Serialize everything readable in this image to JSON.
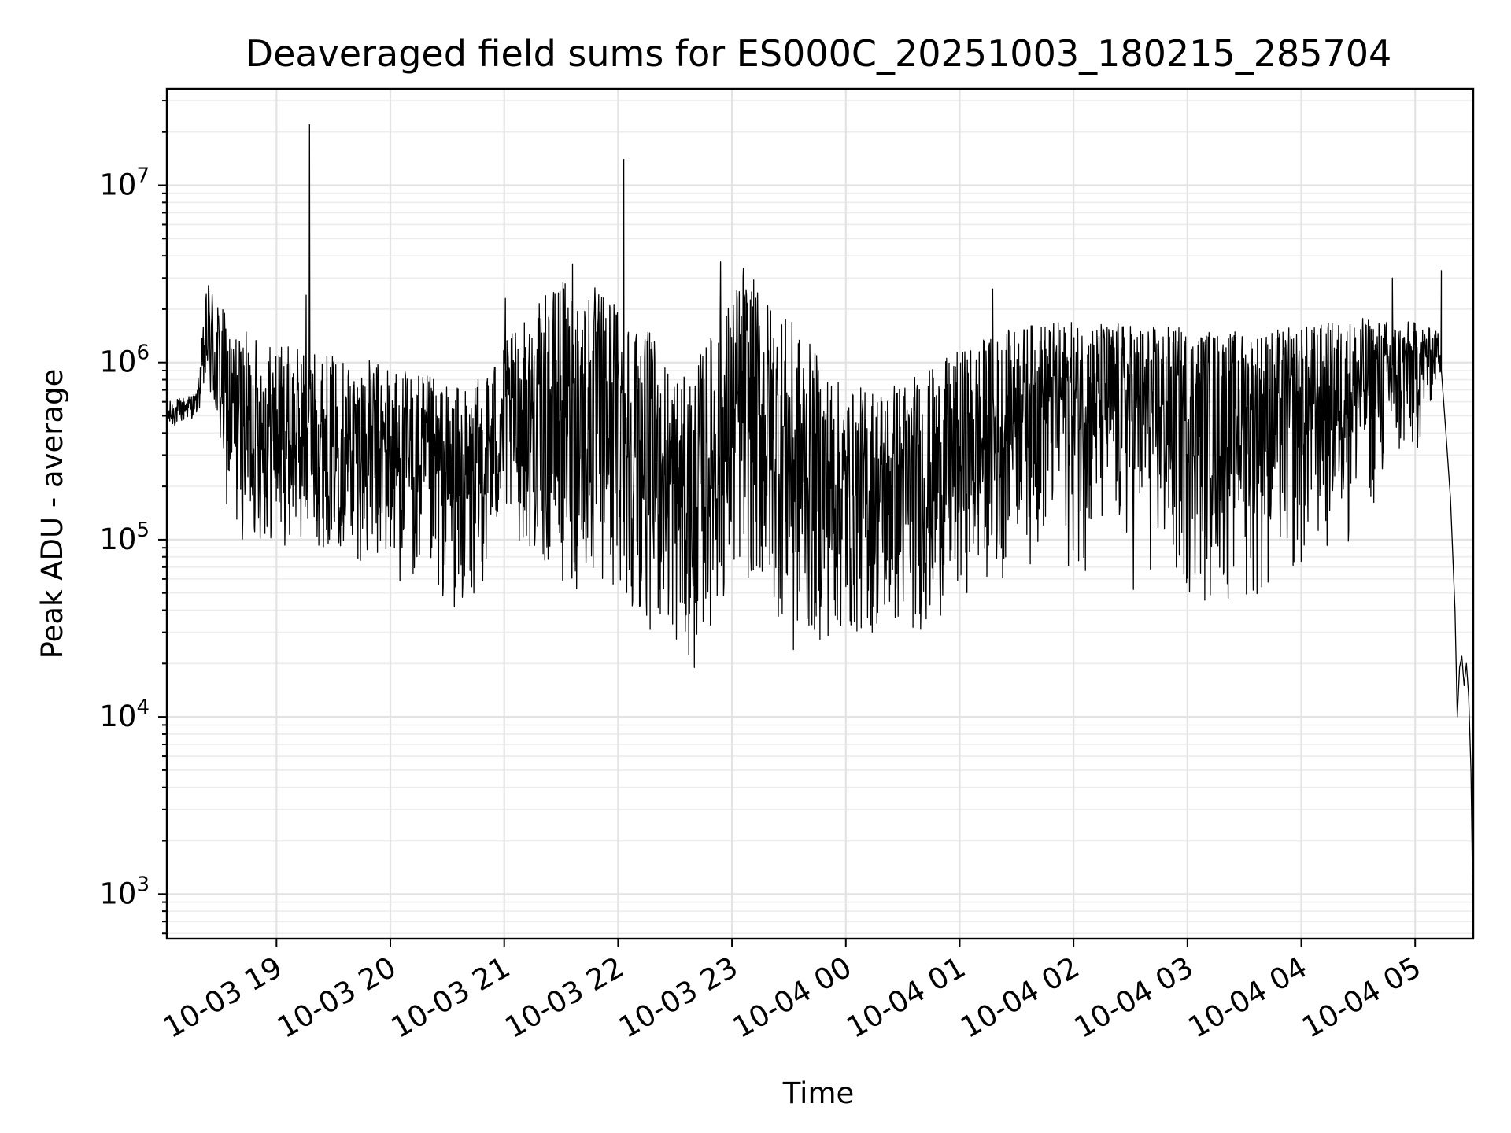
{
  "chart_data": {
    "type": "line",
    "title": "Deaveraged field sums for ES000C_20251003_180215_285704",
    "xlabel": "Time",
    "ylabel": "Peak ADU - average",
    "yscale": "log",
    "ylim": [
      560,
      35000000
    ],
    "xlim_hours": [
      18.037,
      29.51
    ],
    "grid": true,
    "x_tick_labels": [
      "10-03 19",
      "10-03 20",
      "10-03 21",
      "10-03 22",
      "10-03 23",
      "10-04 00",
      "10-04 01",
      "10-04 02",
      "10-04 03",
      "10-04 04",
      "10-04 05"
    ],
    "x_tick_hours": [
      19,
      20,
      21,
      22,
      23,
      24,
      25,
      26,
      27,
      28,
      29
    ],
    "y_tick_base": "10",
    "y_tick_exponents": [
      "3",
      "4",
      "5",
      "6",
      "7"
    ],
    "y_tick_values": [
      1000,
      10000,
      100000,
      1000000,
      10000000
    ],
    "series": [
      {
        "name": "deaveraged field sum",
        "color": "#000000",
        "envelope": [
          {
            "hour": 18.04,
            "low": 400000,
            "high": 600000
          },
          {
            "hour": 18.3,
            "low": 500000,
            "high": 680000
          },
          {
            "hour": 18.4,
            "low": 600000,
            "high": 3200000
          },
          {
            "hour": 18.6,
            "low": 100000,
            "high": 1600000
          },
          {
            "hour": 19.0,
            "low": 90000,
            "high": 1300000
          },
          {
            "hour": 19.5,
            "low": 90000,
            "high": 1100000
          },
          {
            "hour": 20.0,
            "low": 60000,
            "high": 1000000
          },
          {
            "hour": 20.7,
            "low": 35000,
            "high": 700000
          },
          {
            "hour": 21.0,
            "low": 120000,
            "high": 1300000
          },
          {
            "hour": 21.5,
            "low": 50000,
            "high": 3000000
          },
          {
            "hour": 22.0,
            "low": 45000,
            "high": 2500000
          },
          {
            "hour": 22.6,
            "low": 20000,
            "high": 800000
          },
          {
            "hour": 23.1,
            "low": 60000,
            "high": 3400000
          },
          {
            "hour": 23.6,
            "low": 25000,
            "high": 1500000
          },
          {
            "hour": 24.0,
            "low": 27000,
            "high": 700000
          },
          {
            "hour": 24.7,
            "low": 30000,
            "high": 900000
          },
          {
            "hour": 25.2,
            "low": 60000,
            "high": 1400000
          },
          {
            "hour": 25.7,
            "low": 55000,
            "high": 1700000
          },
          {
            "hour": 26.3,
            "low": 45000,
            "high": 1700000
          },
          {
            "hour": 26.9,
            "low": 28000,
            "high": 1600000
          },
          {
            "hour": 27.5,
            "low": 30000,
            "high": 1500000
          },
          {
            "hour": 28.0,
            "low": 35000,
            "high": 1600000
          },
          {
            "hour": 28.5,
            "low": 80000,
            "high": 1800000
          },
          {
            "hour": 29.0,
            "low": 200000,
            "high": 1700000
          },
          {
            "hour": 29.2,
            "low": 700000,
            "high": 1500000
          }
        ],
        "spikes": [
          {
            "hour": 19.29,
            "value": 22000000
          },
          {
            "hour": 19.26,
            "value": 2400000
          },
          {
            "hour": 22.05,
            "value": 14000000
          },
          {
            "hour": 21.6,
            "value": 3600000
          },
          {
            "hour": 22.9,
            "value": 3700000
          },
          {
            "hour": 23.1,
            "value": 3400000
          },
          {
            "hour": 25.29,
            "value": 2600000
          },
          {
            "hour": 28.8,
            "value": 3000000
          },
          {
            "hour": 29.23,
            "value": 3300000
          },
          {
            "hour": 21.01,
            "value": 2300000
          },
          {
            "hour": 22.67,
            "value": 19000
          },
          {
            "hour": 23.54,
            "value": 24000
          }
        ],
        "tail": [
          {
            "hour": 29.23,
            "value": 900000
          },
          {
            "hour": 29.27,
            "value": 400000
          },
          {
            "hour": 29.31,
            "value": 170000
          },
          {
            "hour": 29.35,
            "value": 40000
          },
          {
            "hour": 29.37,
            "value": 10000
          },
          {
            "hour": 29.39,
            "value": 19000
          },
          {
            "hour": 29.41,
            "value": 22000
          },
          {
            "hour": 29.43,
            "value": 15000
          },
          {
            "hour": 29.45,
            "value": 20000
          },
          {
            "hour": 29.47,
            "value": 13000
          },
          {
            "hour": 29.49,
            "value": 5000
          },
          {
            "hour": 29.505,
            "value": 1000
          },
          {
            "hour": 29.51,
            "value": 700
          }
        ]
      }
    ]
  }
}
